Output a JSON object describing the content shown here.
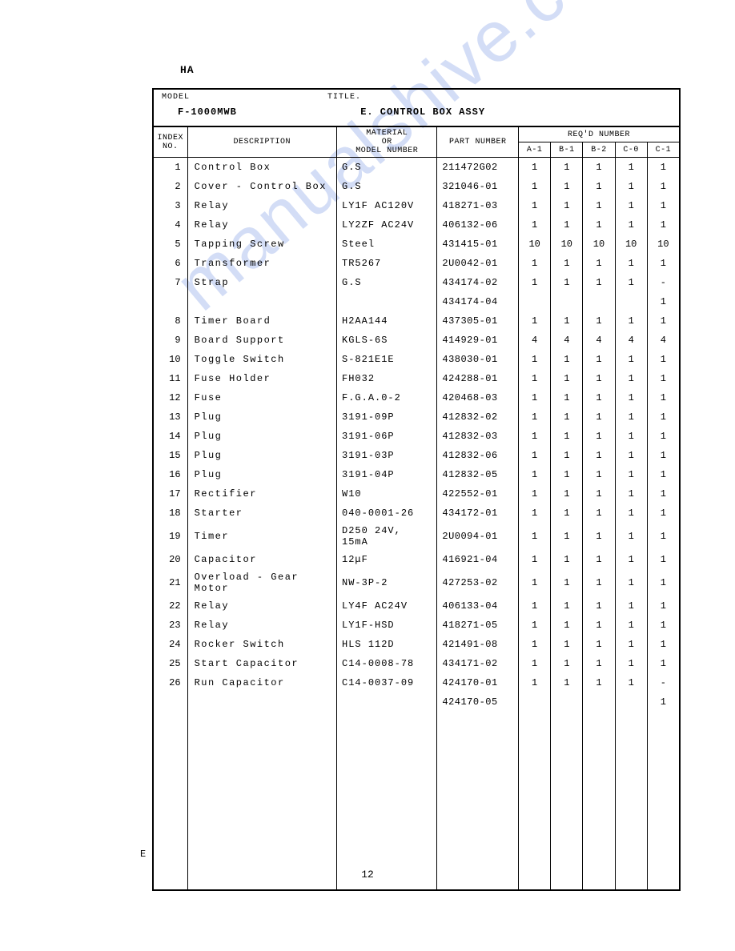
{
  "ha_label": "HA",
  "header": {
    "model_label": "MODEL",
    "title_label": "TITLE.",
    "model_value": "F-1000MWB",
    "title_value": "E. CONTROL BOX ASSY"
  },
  "column_headers": {
    "index": "INDEX NO.",
    "description": "DESCRIPTION",
    "material": "MATERIAL OR MODEL NUMBER",
    "part_number": "PART NUMBER",
    "reqd_number": "REQ'D NUMBER",
    "qty_cols": [
      "A-1",
      "B-1",
      "B-2",
      "C-0",
      "C-1"
    ]
  },
  "rows": [
    {
      "idx": "1",
      "desc": "Control Box",
      "mat": "G.S",
      "part": "211472G02",
      "q": [
        "1",
        "1",
        "1",
        "1",
        "1"
      ]
    },
    {
      "idx": "2",
      "desc": "Cover - Control Box",
      "mat": "G.S",
      "part": "321046-01",
      "q": [
        "1",
        "1",
        "1",
        "1",
        "1"
      ]
    },
    {
      "idx": "3",
      "desc": "Relay",
      "mat": "LY1F AC120V",
      "part": "418271-03",
      "q": [
        "1",
        "1",
        "1",
        "1",
        "1"
      ]
    },
    {
      "idx": "4",
      "desc": "Relay",
      "mat": "LY2ZF AC24V",
      "part": "406132-06",
      "q": [
        "1",
        "1",
        "1",
        "1",
        "1"
      ]
    },
    {
      "idx": "5",
      "desc": "Tapping Screw",
      "mat": "Steel",
      "part": "431415-01",
      "q": [
        "10",
        "10",
        "10",
        "10",
        "10"
      ]
    },
    {
      "idx": "6",
      "desc": "Transformer",
      "mat": "TR5267",
      "part": "2U0042-01",
      "q": [
        "1",
        "1",
        "1",
        "1",
        "1"
      ]
    },
    {
      "idx": "7",
      "desc": "Strap",
      "mat": "G.S",
      "part": "434174-02",
      "q": [
        "1",
        "1",
        "1",
        "1",
        "-"
      ]
    },
    {
      "idx": "",
      "desc": "",
      "mat": "",
      "part": "434174-04",
      "q": [
        "",
        "",
        "",
        "",
        "1"
      ]
    },
    {
      "idx": "8",
      "desc": "Timer Board",
      "mat": "H2AA144",
      "part": "437305-01",
      "q": [
        "1",
        "1",
        "1",
        "1",
        "1"
      ]
    },
    {
      "idx": "9",
      "desc": "Board Support",
      "mat": "KGLS-6S",
      "part": "414929-01",
      "q": [
        "4",
        "4",
        "4",
        "4",
        "4"
      ]
    },
    {
      "idx": "10",
      "desc": "Toggle Switch",
      "mat": "S-821E1E",
      "part": "438030-01",
      "q": [
        "1",
        "1",
        "1",
        "1",
        "1"
      ]
    },
    {
      "idx": "11",
      "desc": "Fuse Holder",
      "mat": "FH032",
      "part": "424288-01",
      "q": [
        "1",
        "1",
        "1",
        "1",
        "1"
      ]
    },
    {
      "idx": "12",
      "desc": "Fuse",
      "mat": "F.G.A.0-2",
      "part": "420468-03",
      "q": [
        "1",
        "1",
        "1",
        "1",
        "1"
      ]
    },
    {
      "idx": "13",
      "desc": "Plug",
      "mat": "3191-09P",
      "part": "412832-02",
      "q": [
        "1",
        "1",
        "1",
        "1",
        "1"
      ]
    },
    {
      "idx": "14",
      "desc": "Plug",
      "mat": "3191-06P",
      "part": "412832-03",
      "q": [
        "1",
        "1",
        "1",
        "1",
        "1"
      ]
    },
    {
      "idx": "15",
      "desc": "Plug",
      "mat": "3191-03P",
      "part": "412832-06",
      "q": [
        "1",
        "1",
        "1",
        "1",
        "1"
      ]
    },
    {
      "idx": "16",
      "desc": "Plug",
      "mat": "3191-04P",
      "part": "412832-05",
      "q": [
        "1",
        "1",
        "1",
        "1",
        "1"
      ]
    },
    {
      "idx": "17",
      "desc": "Rectifier",
      "mat": "W10",
      "part": "422552-01",
      "q": [
        "1",
        "1",
        "1",
        "1",
        "1"
      ]
    },
    {
      "idx": "18",
      "desc": "Starter",
      "mat": "040-0001-26",
      "part": "434172-01",
      "q": [
        "1",
        "1",
        "1",
        "1",
        "1"
      ]
    },
    {
      "idx": "19",
      "desc": "Timer",
      "mat": "D250 24V, 15mA",
      "part": "2U0094-01",
      "q": [
        "1",
        "1",
        "1",
        "1",
        "1"
      ]
    },
    {
      "idx": "20",
      "desc": "Capacitor",
      "mat": "12μF",
      "part": "416921-04",
      "q": [
        "1",
        "1",
        "1",
        "1",
        "1"
      ]
    },
    {
      "idx": "21",
      "desc": "Overload - Gear Motor",
      "mat": "NW-3P-2",
      "part": "427253-02",
      "q": [
        "1",
        "1",
        "1",
        "1",
        "1"
      ]
    },
    {
      "idx": "22",
      "desc": "Relay",
      "mat": "LY4F AC24V",
      "part": "406133-04",
      "q": [
        "1",
        "1",
        "1",
        "1",
        "1"
      ]
    },
    {
      "idx": "23",
      "desc": "Relay",
      "mat": "LY1F-HSD",
      "part": "418271-05",
      "q": [
        "1",
        "1",
        "1",
        "1",
        "1"
      ]
    },
    {
      "idx": "24",
      "desc": "Rocker Switch",
      "mat": "HLS 112D",
      "part": "421491-08",
      "q": [
        "1",
        "1",
        "1",
        "1",
        "1"
      ]
    },
    {
      "idx": "25",
      "desc": "Start Capacitor",
      "mat": "C14-0008-78",
      "part": "434171-02",
      "q": [
        "1",
        "1",
        "1",
        "1",
        "1"
      ]
    },
    {
      "idx": "26",
      "desc": "Run Capacitor",
      "mat": "C14-0037-09",
      "part": "424170-01",
      "q": [
        "1",
        "1",
        "1",
        "1",
        "-"
      ]
    },
    {
      "idx": "",
      "desc": "",
      "mat": "",
      "part": "424170-05",
      "q": [
        "",
        "",
        "",
        "",
        "1"
      ]
    }
  ],
  "page_number": "12",
  "e_label": "E",
  "watermark": "manualshive.com"
}
